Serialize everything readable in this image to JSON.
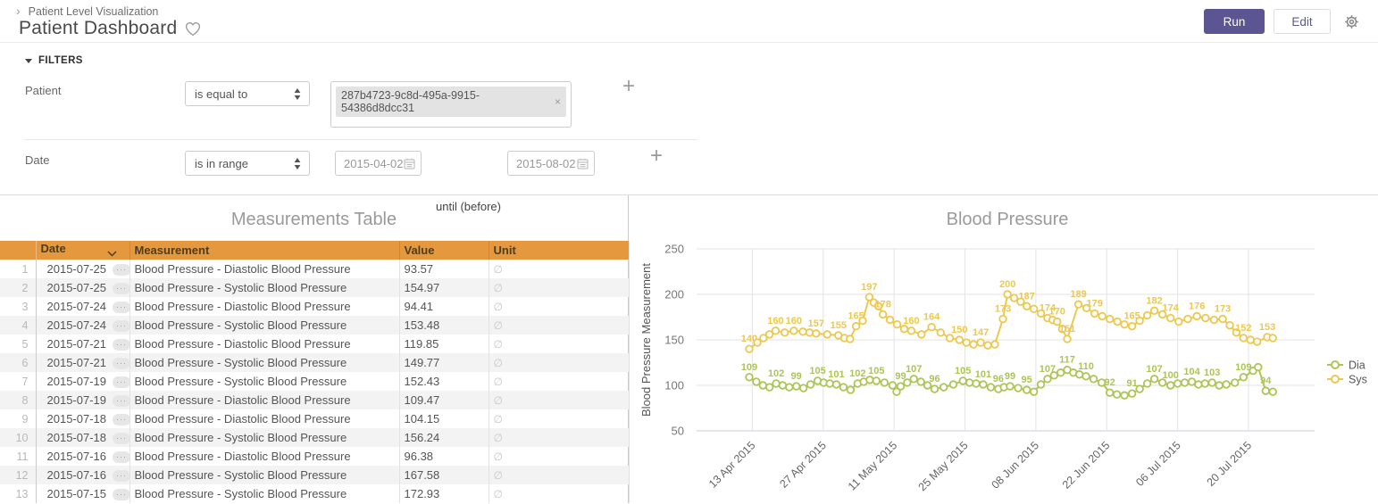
{
  "header": {
    "breadcrumb": "Patient Level Visualization",
    "title": "Patient Dashboard",
    "run_label": "Run",
    "edit_label": "Edit"
  },
  "icons": {
    "breadcrumb_chevron": "›",
    "ellipsis": "···",
    "close": "×",
    "plus": "+"
  },
  "colors": {
    "accent_orange": "#e5983d",
    "run_button": "#5b5591",
    "sys_line": "#edc84e",
    "dia_line": "#abc556"
  },
  "filters": {
    "section_label": "FILTERS",
    "patient": {
      "label": "Patient",
      "operator": "is equal to",
      "value_tag": "287b4723-9c8d-495a-9915-54386d8dcc31"
    },
    "date": {
      "label": "Date",
      "operator": "is in range",
      "from": "2015-04-02",
      "until_label": "until (before)",
      "to": "2015-08-02"
    }
  },
  "table": {
    "title": "Measurements Table",
    "columns": [
      "Date",
      "Measurement",
      "Value",
      "Unit"
    ],
    "unit_empty_symbol": "∅",
    "rows": [
      {
        "date": "2015-07-25",
        "measurement": "Blood Pressure - Diastolic Blood Pressure",
        "value": "93.57"
      },
      {
        "date": "2015-07-25",
        "measurement": "Blood Pressure - Systolic Blood Pressure",
        "value": "154.97"
      },
      {
        "date": "2015-07-24",
        "measurement": "Blood Pressure - Diastolic Blood Pressure",
        "value": "94.41"
      },
      {
        "date": "2015-07-24",
        "measurement": "Blood Pressure - Systolic Blood Pressure",
        "value": "153.48"
      },
      {
        "date": "2015-07-21",
        "measurement": "Blood Pressure - Diastolic Blood Pressure",
        "value": "119.85"
      },
      {
        "date": "2015-07-21",
        "measurement": "Blood Pressure - Systolic Blood Pressure",
        "value": "149.77"
      },
      {
        "date": "2015-07-19",
        "measurement": "Blood Pressure - Systolic Blood Pressure",
        "value": "152.43"
      },
      {
        "date": "2015-07-19",
        "measurement": "Blood Pressure - Diastolic Blood Pressure",
        "value": "109.47"
      },
      {
        "date": "2015-07-18",
        "measurement": "Blood Pressure - Diastolic Blood Pressure",
        "value": "104.15"
      },
      {
        "date": "2015-07-18",
        "measurement": "Blood Pressure - Systolic Blood Pressure",
        "value": "156.24"
      },
      {
        "date": "2015-07-16",
        "measurement": "Blood Pressure - Diastolic Blood Pressure",
        "value": "96.38"
      },
      {
        "date": "2015-07-16",
        "measurement": "Blood Pressure - Systolic Blood Pressure",
        "value": "167.58"
      },
      {
        "date": "2015-07-15",
        "measurement": "Blood Pressure - Systolic Blood Pressure",
        "value": "172.93"
      }
    ]
  },
  "chart_data": {
    "type": "line",
    "title": "Blood Pressure",
    "ylabel": "Blood Pressure Measurement",
    "xlabel": "",
    "ylim": [
      50,
      250
    ],
    "y_ticks": [
      50,
      100,
      150,
      200,
      250
    ],
    "x_domain": [
      "2015-04-02",
      "2015-08-02"
    ],
    "x_ticks": [
      "13 Apr 2015",
      "27 Apr 2015",
      "11 May 2015",
      "25 May 2015",
      "08 Jun 2015",
      "22 Jun 2015",
      "06 Jul 2015",
      "20 Jul 2015"
    ],
    "x_tick_days": [
      11,
      25,
      39,
      53,
      67,
      81,
      95,
      109
    ],
    "grid": true,
    "legend_position": "right",
    "marker": "open-circle",
    "series": [
      {
        "name": "Dia",
        "color": "#abc556",
        "labeled_values": [
          109,
          102,
          99,
          105,
          101,
          102,
          105,
          99,
          107,
          96,
          105,
          101,
          96,
          99,
          95,
          107,
          117,
          110,
          92,
          91,
          107,
          100,
          104,
          103,
          109,
          94
        ],
        "points": [
          [
            10.4,
            109,
            1
          ],
          [
            11.8,
            104,
            0
          ],
          [
            13.1,
            100,
            0
          ],
          [
            14.4,
            98,
            0
          ],
          [
            15.7,
            102,
            1
          ],
          [
            17,
            100,
            0
          ],
          [
            18.3,
            98,
            0
          ],
          [
            19.7,
            99,
            1
          ],
          [
            21.1,
            97,
            0
          ],
          [
            22.5,
            101,
            0
          ],
          [
            23.9,
            105,
            1
          ],
          [
            25.1,
            103,
            0
          ],
          [
            26.3,
            102,
            0
          ],
          [
            27.6,
            101,
            1
          ],
          [
            29,
            98,
            0
          ],
          [
            30.4,
            95,
            0
          ],
          [
            31.8,
            102,
            1
          ],
          [
            33,
            104,
            0
          ],
          [
            34.2,
            106,
            0
          ],
          [
            35.5,
            105,
            1
          ],
          [
            37.1,
            103,
            0
          ],
          [
            38.7,
            100,
            0
          ],
          [
            39.5,
            93,
            0
          ],
          [
            40.3,
            99,
            1
          ],
          [
            41.6,
            103,
            0
          ],
          [
            42.9,
            107,
            1
          ],
          [
            44.3,
            104,
            0
          ],
          [
            45.6,
            100,
            0
          ],
          [
            47,
            96,
            1
          ],
          [
            48.8,
            98,
            0
          ],
          [
            50.7,
            101,
            0
          ],
          [
            52.6,
            105,
            1
          ],
          [
            53.9,
            103,
            0
          ],
          [
            55.2,
            102,
            0
          ],
          [
            56.6,
            101,
            1
          ],
          [
            58.1,
            98,
            0
          ],
          [
            59.6,
            96,
            1
          ],
          [
            60.7,
            98,
            0
          ],
          [
            61.9,
            99,
            1
          ],
          [
            63.5,
            97,
            0
          ],
          [
            65.2,
            95,
            1
          ],
          [
            66.6,
            93,
            0
          ],
          [
            68,
            101,
            0
          ],
          [
            69.3,
            107,
            1
          ],
          [
            70.6,
            111,
            0
          ],
          [
            71.9,
            114,
            0
          ],
          [
            73.2,
            117,
            1
          ],
          [
            74.4,
            114,
            0
          ],
          [
            75.6,
            112,
            0
          ],
          [
            76.9,
            110,
            1
          ],
          [
            78.4,
            107,
            0
          ],
          [
            80,
            103,
            0
          ],
          [
            81.6,
            92,
            1
          ],
          [
            83,
            90,
            0
          ],
          [
            84.5,
            89,
            0
          ],
          [
            86,
            91,
            1
          ],
          [
            87.5,
            96,
            0
          ],
          [
            89,
            102,
            0
          ],
          [
            90.4,
            107,
            1
          ],
          [
            92,
            103,
            0
          ],
          [
            93.6,
            100,
            1
          ],
          [
            95,
            102,
            0
          ],
          [
            96.4,
            103,
            0
          ],
          [
            97.8,
            104,
            1
          ],
          [
            99.1,
            101,
            0
          ],
          [
            100.4,
            102,
            0
          ],
          [
            101.8,
            103,
            1
          ],
          [
            103.2,
            100,
            0
          ],
          [
            104.6,
            101,
            0
          ],
          [
            106.3,
            103,
            0
          ],
          [
            108,
            109,
            1
          ],
          [
            109.9,
            116,
            0
          ],
          [
            110.9,
            120,
            0
          ],
          [
            112.4,
            94,
            1
          ],
          [
            113.8,
            93,
            0
          ]
        ]
      },
      {
        "name": "Sys",
        "color": "#edc84e",
        "labeled_values": [
          140,
          160,
          160,
          157,
          155,
          165,
          197,
          178,
          160,
          164,
          150,
          147,
          173,
          200,
          187,
          174,
          170,
          151,
          189,
          179,
          165,
          182,
          174,
          176,
          173,
          152,
          153
        ],
        "points": [
          [
            10.4,
            140,
            1
          ],
          [
            12,
            147,
            0
          ],
          [
            13.2,
            152,
            0
          ],
          [
            14.4,
            156,
            0
          ],
          [
            15.6,
            160,
            1
          ],
          [
            17.4,
            158,
            0
          ],
          [
            19.2,
            160,
            1
          ],
          [
            21,
            159,
            0
          ],
          [
            22.3,
            158,
            0
          ],
          [
            23.6,
            157,
            1
          ],
          [
            25.8,
            156,
            0
          ],
          [
            28,
            155,
            1
          ],
          [
            29.2,
            152,
            0
          ],
          [
            30.3,
            151,
            0
          ],
          [
            31.5,
            165,
            1
          ],
          [
            32.8,
            171,
            0
          ],
          [
            34.1,
            197,
            1
          ],
          [
            35,
            191,
            0
          ],
          [
            35.9,
            187,
            0
          ],
          [
            36.8,
            178,
            1
          ],
          [
            38.2,
            172,
            0
          ],
          [
            39.6,
            167,
            0
          ],
          [
            41,
            162,
            0
          ],
          [
            42.4,
            160,
            1
          ],
          [
            44.4,
            156,
            0
          ],
          [
            46.4,
            164,
            1
          ],
          [
            48.2,
            158,
            0
          ],
          [
            50,
            152,
            0
          ],
          [
            51.9,
            150,
            1
          ],
          [
            53.3,
            147,
            0
          ],
          [
            54.7,
            145,
            0
          ],
          [
            56.1,
            147,
            1
          ],
          [
            57.5,
            144,
            0
          ],
          [
            58.9,
            145,
            0
          ],
          [
            60.5,
            173,
            1
          ],
          [
            61.4,
            200,
            1
          ],
          [
            62.7,
            196,
            0
          ],
          [
            64,
            192,
            0
          ],
          [
            65.2,
            187,
            1
          ],
          [
            66.6,
            184,
            0
          ],
          [
            68,
            179,
            0
          ],
          [
            69.3,
            174,
            1
          ],
          [
            70.3,
            172,
            0
          ],
          [
            71.2,
            170,
            1
          ],
          [
            72.2,
            162,
            0
          ],
          [
            73.2,
            151,
            1
          ],
          [
            75.4,
            189,
            1
          ],
          [
            77,
            185,
            0
          ],
          [
            78.6,
            179,
            1
          ],
          [
            80.1,
            176,
            0
          ],
          [
            81.6,
            173,
            0
          ],
          [
            83.1,
            170,
            0
          ],
          [
            84.5,
            167,
            0
          ],
          [
            86,
            165,
            1
          ],
          [
            87.5,
            171,
            0
          ],
          [
            89,
            177,
            0
          ],
          [
            90.4,
            182,
            1
          ],
          [
            92,
            178,
            0
          ],
          [
            93.6,
            174,
            1
          ],
          [
            95.2,
            170,
            0
          ],
          [
            97,
            173,
            0
          ],
          [
            98.8,
            176,
            1
          ],
          [
            100.5,
            174,
            0
          ],
          [
            102.2,
            172,
            0
          ],
          [
            103.9,
            173,
            1
          ],
          [
            105.3,
            166,
            0
          ],
          [
            106.6,
            158,
            0
          ],
          [
            108,
            152,
            1
          ],
          [
            109.4,
            150,
            0
          ],
          [
            110.7,
            148,
            0
          ],
          [
            112.7,
            153,
            1
          ],
          [
            113.8,
            152,
            0
          ]
        ]
      }
    ]
  }
}
